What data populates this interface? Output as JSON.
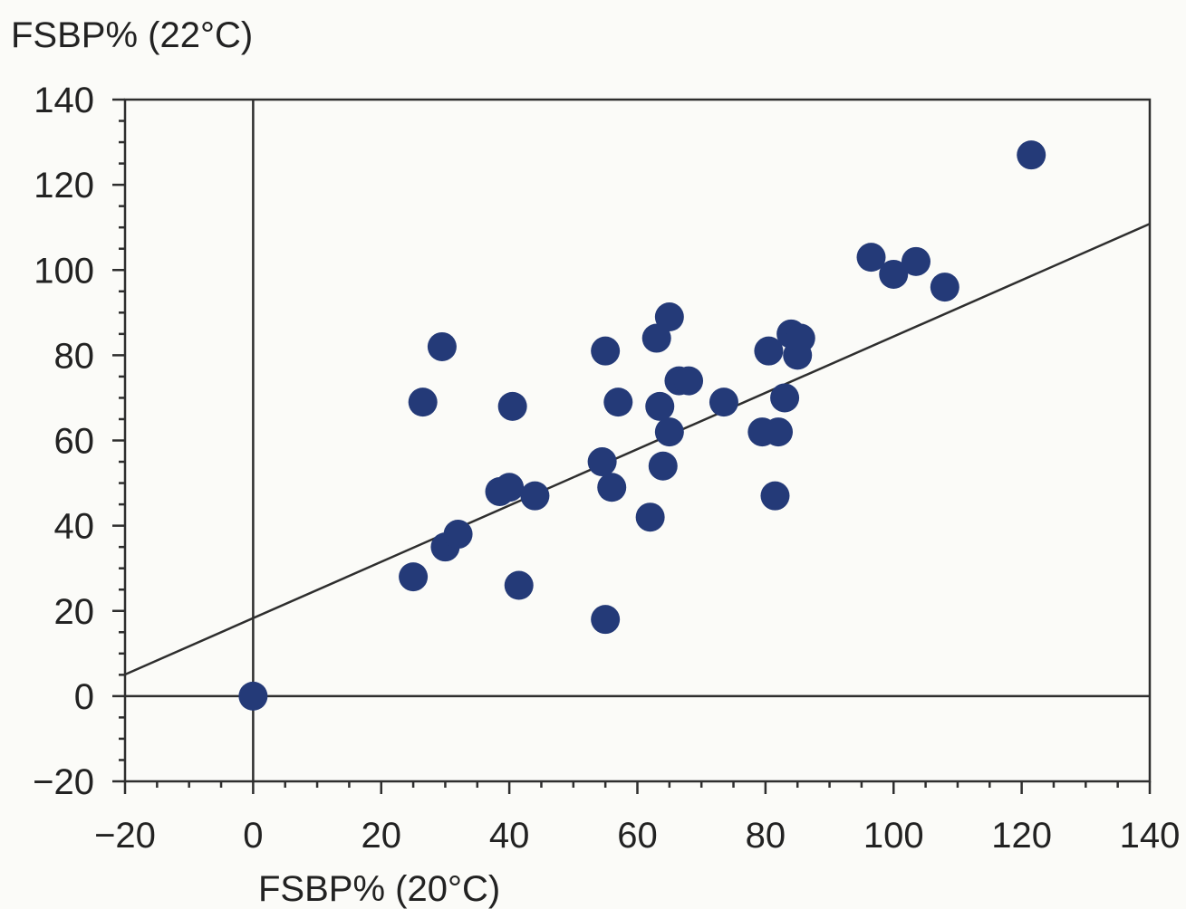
{
  "chart_data": {
    "type": "scatter",
    "title": "",
    "xlabel": "FSBP% (20°C)",
    "ylabel": "FSBP% (22°C)",
    "xlim": [
      -20,
      140
    ],
    "ylim": [
      -20,
      140
    ],
    "x_ticks": [
      "−20",
      "0",
      "20",
      "40",
      "60",
      "80",
      "100",
      "120",
      "140"
    ],
    "y_ticks": [
      "140",
      "120",
      "100",
      "80",
      "60",
      "40",
      "20",
      "0",
      "−20"
    ],
    "grid": false,
    "legend": "none",
    "point_color": "#243a78",
    "line_color": "#2e2e2e",
    "points": [
      {
        "x": 0,
        "y": 0
      },
      {
        "x": 25,
        "y": 28
      },
      {
        "x": 26.5,
        "y": 69
      },
      {
        "x": 29.5,
        "y": 82
      },
      {
        "x": 30,
        "y": 35
      },
      {
        "x": 32,
        "y": 38
      },
      {
        "x": 38.5,
        "y": 48
      },
      {
        "x": 40,
        "y": 49
      },
      {
        "x": 40.5,
        "y": 68
      },
      {
        "x": 41.5,
        "y": 26
      },
      {
        "x": 44,
        "y": 47
      },
      {
        "x": 54.5,
        "y": 55
      },
      {
        "x": 55,
        "y": 81
      },
      {
        "x": 55,
        "y": 18
      },
      {
        "x": 56,
        "y": 49
      },
      {
        "x": 57,
        "y": 69
      },
      {
        "x": 62,
        "y": 42
      },
      {
        "x": 63,
        "y": 84
      },
      {
        "x": 63.5,
        "y": 68
      },
      {
        "x": 64,
        "y": 54
      },
      {
        "x": 65,
        "y": 62
      },
      {
        "x": 65,
        "y": 89
      },
      {
        "x": 66.5,
        "y": 74
      },
      {
        "x": 68,
        "y": 74
      },
      {
        "x": 73.5,
        "y": 69
      },
      {
        "x": 79.5,
        "y": 62
      },
      {
        "x": 80.5,
        "y": 81
      },
      {
        "x": 81.5,
        "y": 47
      },
      {
        "x": 82,
        "y": 62
      },
      {
        "x": 83,
        "y": 70
      },
      {
        "x": 84,
        "y": 85
      },
      {
        "x": 85,
        "y": 80
      },
      {
        "x": 85.5,
        "y": 84
      },
      {
        "x": 96.5,
        "y": 103
      },
      {
        "x": 100,
        "y": 99
      },
      {
        "x": 103.5,
        "y": 102
      },
      {
        "x": 108,
        "y": 96
      },
      {
        "x": 121.5,
        "y": 127
      }
    ],
    "trend_line": {
      "slope": 0.661,
      "intercept": 18.3
    },
    "reference_lines": {
      "x_zero": 0,
      "y_zero": 0
    }
  }
}
